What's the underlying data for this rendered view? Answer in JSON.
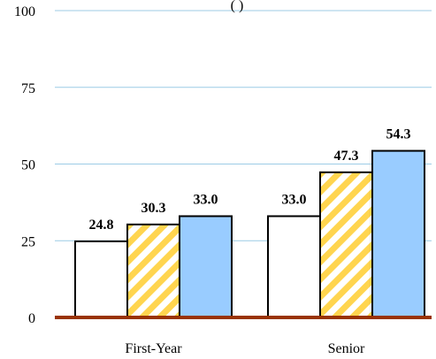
{
  "chart_data": {
    "type": "bar",
    "title_fragment": "(   )",
    "categories": [
      "First-Year",
      "Senior"
    ],
    "series": [
      {
        "values": [
          24.8,
          33.0
        ],
        "fill": "#ffffff",
        "pattern": "none",
        "labels": [
          "24.8",
          "33.0"
        ]
      },
      {
        "values": [
          30.3,
          47.3
        ],
        "fill": "#ffd54f",
        "pattern": "diagonal-stripes",
        "labels": [
          "30.3",
          "47.3"
        ]
      },
      {
        "values": [
          33.0,
          54.3
        ],
        "fill": "#99ccff",
        "pattern": "none",
        "labels": [
          "33.0",
          "54.3"
        ]
      }
    ],
    "ylim": [
      0,
      100
    ],
    "yticks": [
      0,
      25,
      50,
      75,
      100
    ],
    "ytick_labels": [
      "0",
      "25",
      "50",
      "75",
      "100"
    ],
    "grid": true,
    "colors": {
      "grid": "#9ccbe6",
      "baseline": "#993300",
      "bar_stroke": "#000000"
    }
  }
}
